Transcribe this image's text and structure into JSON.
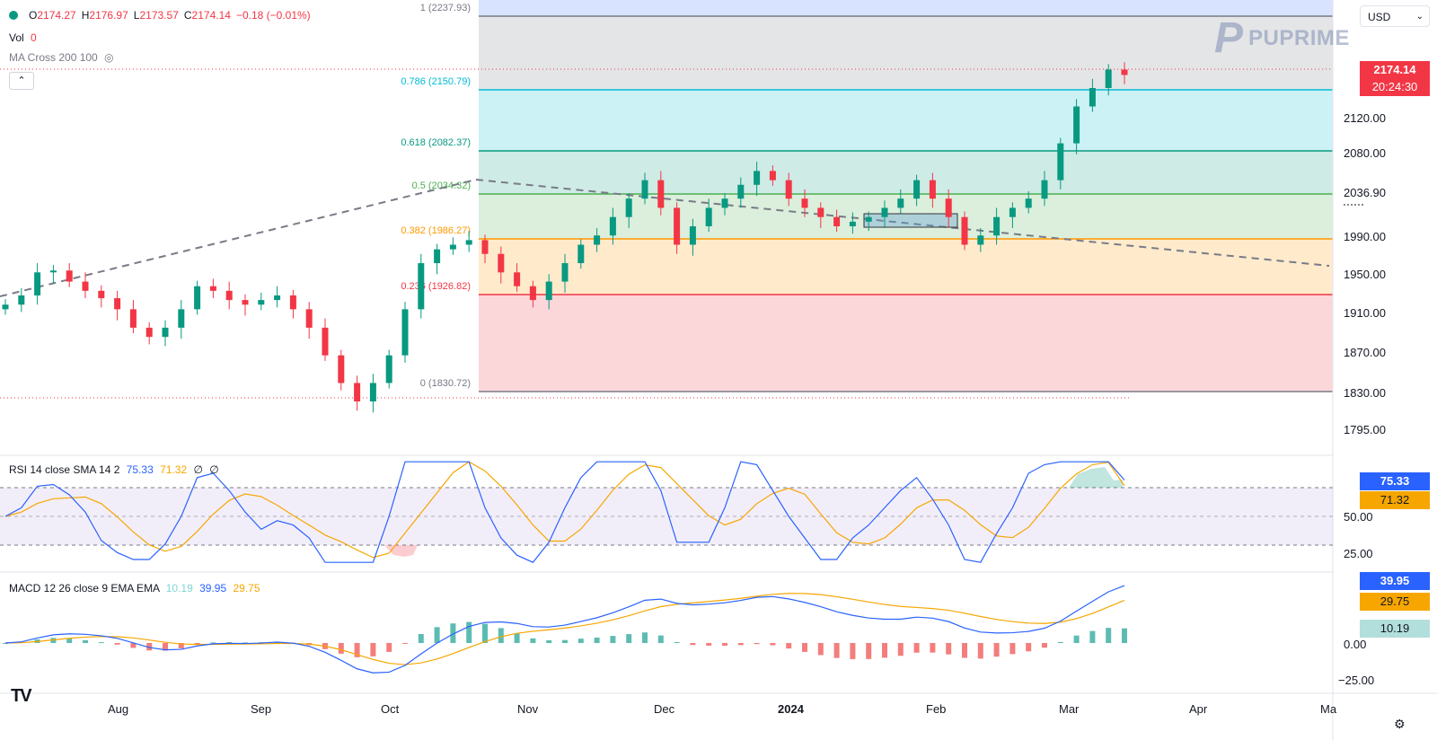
{
  "symbol_bar": {
    "open_label": "O",
    "open": "2174.27",
    "high_label": "H",
    "high": "2176.97",
    "low_label": "L",
    "low": "2173.57",
    "close_label": "C",
    "close": "2174.14",
    "change": "−0.18 (−0.01%)"
  },
  "vol": {
    "label": "Vol",
    "value": "0"
  },
  "ma_cross": {
    "label": "MA Cross 200 100"
  },
  "currency": "USD",
  "brand": {
    "mark": "P",
    "name": "PUPRIME"
  },
  "colors": {
    "up": "#089981",
    "down": "#f23645",
    "rsi": "#2962ff",
    "rsi_sma": "#f7a600",
    "macd": "#2962ff",
    "signal": "#f7a600",
    "fib_1": "#787b86",
    "fib_786": "#00bcd4",
    "fib_618": "#089981",
    "fib_5": "#4caf50",
    "fib_382": "#ff9800",
    "fib_236": "#f23645",
    "fib_0": "#787b86"
  },
  "price_tags": {
    "last": "2174.14",
    "countdown": "20:24:30"
  },
  "price_axis": [
    "2120.00",
    "2080.00",
    "2036.90",
    "1990.00",
    "1950.00",
    "1910.00",
    "1870.00",
    "1830.00",
    "1795.00"
  ],
  "fib_labels": [
    "1 (2237.93)",
    "0.786 (2150.79)",
    "0.618 (2082.37)",
    "0.5 (2034.32)",
    "0.382 (1986.27)",
    "0.236 (1926.82)",
    "0 (1830.72)"
  ],
  "rsi": {
    "label": "RSI 14 close SMA 14 2",
    "value": "75.33",
    "sma": "71.32",
    "extra1": "∅",
    "extra2": "∅",
    "axis": [
      "50.00",
      "25.00"
    ],
    "tag_rsi": "75.33",
    "tag_sma": "71.32"
  },
  "macd": {
    "label": "MACD 12 26 close 9 EMA EMA",
    "hist": "10.19",
    "macd": "39.95",
    "signal": "29.75",
    "axis": [
      "0.00",
      "−25.00"
    ],
    "tag_macd": "39.95",
    "tag_signal": "29.75",
    "tag_hist": "10.19"
  },
  "time_axis": [
    "Aug",
    "Sep",
    "Oct",
    "Nov",
    "Dec",
    "2024",
    "Feb",
    "Mar",
    "Apr",
    "Ma"
  ],
  "chart_data": {
    "type": "candlestick",
    "instrument_currency": "USD",
    "price_range": [
      1780,
      2245
    ],
    "fibonacci": [
      {
        "level": "1",
        "price": 2237.93
      },
      {
        "level": "0.786",
        "price": 2150.79
      },
      {
        "level": "0.618",
        "price": 2082.37
      },
      {
        "level": "0.5",
        "price": 2034.32
      },
      {
        "level": "0.382",
        "price": 1986.27
      },
      {
        "level": "0.236",
        "price": 1926.82
      },
      {
        "level": "0",
        "price": 1830.72
      }
    ],
    "last_price": 2174.14,
    "ohlc_last": {
      "open": 2174.27,
      "high": 2176.97,
      "low": 2173.57,
      "close": 2174.14
    },
    "rsi_range": [
      0,
      100
    ],
    "rsi_levels": [
      70,
      50,
      30
    ],
    "rsi_last": 75.33,
    "rsi_sma_last": 71.32,
    "macd_range": [
      -35,
      55
    ],
    "macd_last": 39.95,
    "signal_last": 29.75,
    "hist_last": 10.19,
    "closes_sampled": [
      1925,
      1935,
      1960,
      1962,
      1950,
      1940,
      1932,
      1920,
      1900,
      1890,
      1900,
      1920,
      1945,
      1940,
      1930,
      1925,
      1930,
      1935,
      1920,
      1900,
      1870,
      1840,
      1820,
      1840,
      1870,
      1920,
      1970,
      1985,
      1990,
      1995,
      1980,
      1960,
      1945,
      1930,
      1950,
      1970,
      1990,
      2000,
      2020,
      2040,
      2060,
      2030,
      1990,
      2010,
      2030,
      2040,
      2055,
      2070,
      2060,
      2040,
      2030,
      2020,
      2010,
      2015,
      2020,
      2030,
      2040,
      2060,
      2040,
      2020,
      1990,
      2000,
      2020,
      2030,
      2040,
      2060,
      2100,
      2140,
      2160,
      2180,
      2174.14
    ]
  }
}
